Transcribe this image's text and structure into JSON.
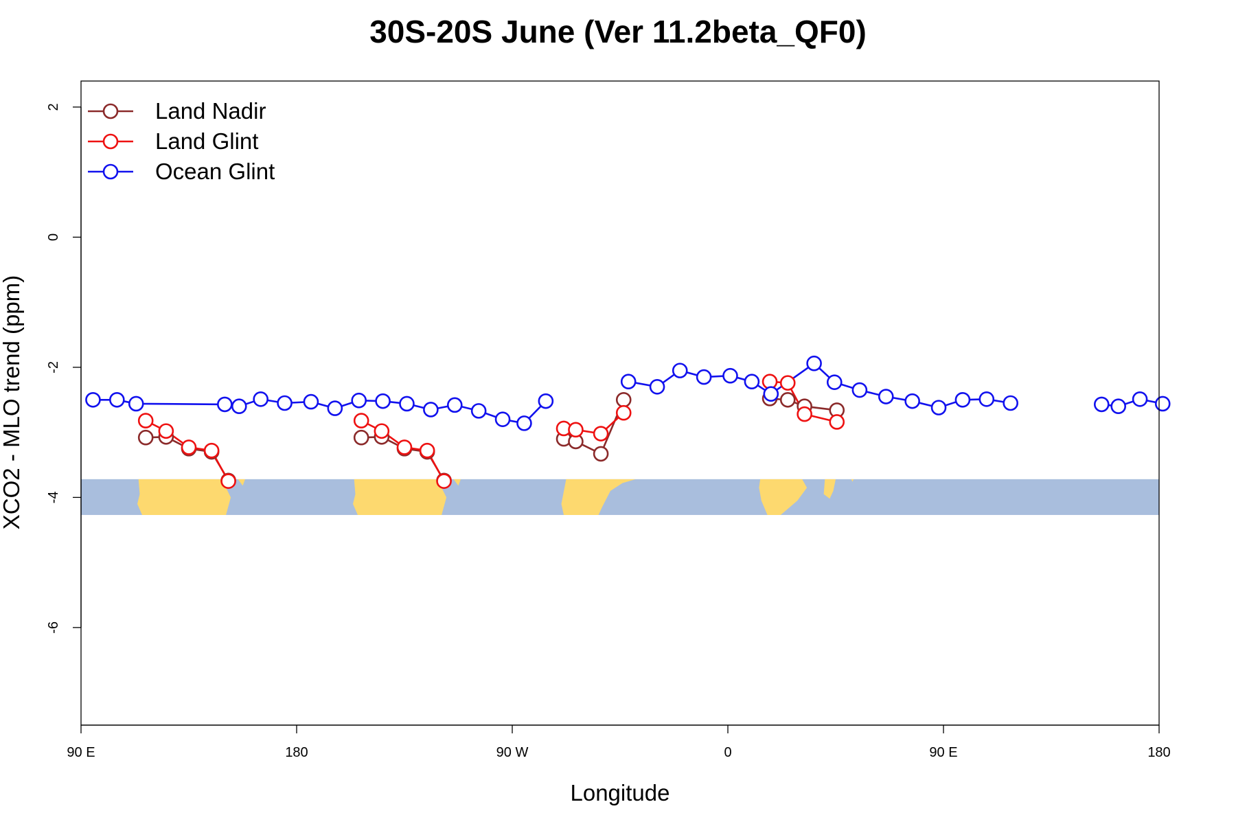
{
  "chart_data": {
    "type": "line",
    "title": "30S-20S June (Ver 11.2beta_QF0)",
    "xlabel": "Longitude",
    "ylabel": "XCO2 - MLO trend (ppm)",
    "xlim": [
      90,
      540
    ],
    "ylim": [
      -7.5,
      2.4
    ],
    "x_ticks": [
      {
        "value": 90,
        "label": "90 E"
      },
      {
        "value": 180,
        "label": "180"
      },
      {
        "value": 270,
        "label": "90 W"
      },
      {
        "value": 360,
        "label": "0"
      },
      {
        "value": 450,
        "label": "90 E"
      },
      {
        "value": 540,
        "label": "180"
      }
    ],
    "y_ticks": [
      {
        "value": 2,
        "label": "2"
      },
      {
        "value": 0,
        "label": "0"
      },
      {
        "value": -2,
        "label": "-2"
      },
      {
        "value": -4,
        "label": "-4"
      },
      {
        "value": -6,
        "label": "-6"
      }
    ],
    "legend": {
      "position": "top-left",
      "entries": [
        {
          "name": "Land Nadir",
          "color": "#8b2a2a"
        },
        {
          "name": "Land Glint",
          "color": "#ee1111"
        },
        {
          "name": "Ocean Glint",
          "color": "#1111ee"
        }
      ]
    },
    "series": [
      {
        "name": "Land Nadir",
        "color": "#8b2a2a",
        "segments": [
          [
            [
              117,
              -3.08
            ],
            [
              125.5,
              -3.07
            ],
            [
              135,
              -3.25
            ],
            [
              144.5,
              -3.3
            ],
            [
              151.5,
              -3.74
            ]
          ],
          [
            [
              291.5,
              -3.1
            ],
            [
              296.5,
              -3.14
            ],
            [
              307,
              -3.33
            ],
            [
              316.5,
              -2.5
            ]
          ],
          [
            [
              377.5,
              -2.48
            ],
            [
              385,
              -2.5
            ],
            [
              392,
              -2.6
            ],
            [
              405.5,
              -2.66
            ]
          ],
          [
            [
              207,
              -3.08
            ],
            [
              215.5,
              -3.07
            ],
            [
              225,
              -3.25
            ],
            [
              234.5,
              -3.3
            ],
            [
              241.5,
              -3.74
            ]
          ]
        ]
      },
      {
        "name": "Land Glint",
        "color": "#ee1111",
        "segments": [
          [
            [
              117,
              -2.82
            ],
            [
              125.5,
              -2.98
            ],
            [
              135,
              -3.23
            ],
            [
              144.5,
              -3.28
            ],
            [
              151.5,
              -3.75
            ]
          ],
          [
            [
              291.5,
              -2.94
            ],
            [
              296.5,
              -2.96
            ],
            [
              307,
              -3.02
            ],
            [
              316.5,
              -2.7
            ]
          ],
          [
            [
              377.5,
              -2.22
            ],
            [
              385,
              -2.24
            ],
            [
              392,
              -2.72
            ],
            [
              405.5,
              -2.84
            ]
          ],
          [
            [
              207,
              -2.82
            ],
            [
              215.5,
              -2.98
            ],
            [
              225,
              -3.23
            ],
            [
              234.5,
              -3.28
            ],
            [
              241.5,
              -3.75
            ]
          ]
        ]
      },
      {
        "name": "Ocean Glint",
        "color": "#1111ee",
        "segments": [
          [
            [
              95,
              -2.5
            ],
            [
              105,
              -2.5
            ],
            [
              113,
              -2.56
            ],
            [
              150,
              -2.57
            ],
            [
              156,
              -2.6
            ],
            [
              165,
              -2.49
            ],
            [
              175,
              -2.55
            ],
            [
              186,
              -2.53
            ],
            [
              196,
              -2.63
            ],
            [
              206,
              -2.51
            ],
            [
              216,
              -2.52
            ],
            [
              226,
              -2.56
            ],
            [
              236,
              -2.65
            ],
            [
              246,
              -2.58
            ],
            [
              256,
              -2.67
            ],
            [
              266,
              -2.8
            ],
            [
              275,
              -2.86
            ],
            [
              284,
              -2.52
            ]
          ],
          [
            [
              318.5,
              -2.22
            ],
            [
              330.5,
              -2.3
            ],
            [
              340,
              -2.05
            ],
            [
              350,
              -2.15
            ],
            [
              361,
              -2.13
            ],
            [
              370,
              -2.22
            ],
            [
              378,
              -2.41
            ],
            [
              396,
              -1.94
            ],
            [
              404.5,
              -2.23
            ],
            [
              415,
              -2.35
            ],
            [
              426,
              -2.45
            ],
            [
              437,
              -2.52
            ],
            [
              448,
              -2.62
            ],
            [
              458,
              -2.5
            ],
            [
              468,
              -2.49
            ],
            [
              478,
              -2.55
            ]
          ],
          [
            [
              516,
              -2.57
            ],
            [
              523,
              -2.6
            ],
            [
              532,
              -2.49
            ],
            [
              541.5,
              -2.56
            ]
          ]
        ]
      }
    ],
    "map_strip": {
      "y_range": [
        -4.27,
        -3.72
      ],
      "ocean_color": "#a9bedd",
      "land_color": "#fdd96f",
      "land_masses": [
        [
          [
            114,
            -3.72
          ],
          [
            148,
            -3.72
          ],
          [
            150.5,
            -3.85
          ],
          [
            152.5,
            -4.0
          ],
          [
            150.5,
            -4.27
          ],
          [
            115.5,
            -4.27
          ],
          [
            113.5,
            -4.1
          ],
          [
            114.5,
            -3.95
          ]
        ],
        [
          [
            155.5,
            -3.72
          ],
          [
            158.5,
            -3.72
          ],
          [
            157.5,
            -3.82
          ]
        ],
        [
          [
            292.5,
            -3.72
          ],
          [
            321.5,
            -3.72
          ],
          [
            316,
            -3.78
          ],
          [
            311,
            -3.9
          ],
          [
            307.5,
            -4.15
          ],
          [
            306,
            -4.27
          ],
          [
            291.5,
            -4.27
          ],
          [
            290.5,
            -4.1
          ]
        ],
        [
          [
            373.5,
            -3.72
          ],
          [
            391,
            -3.72
          ],
          [
            393,
            -3.85
          ],
          [
            389,
            -4.05
          ],
          [
            382,
            -4.27
          ],
          [
            376.5,
            -4.27
          ],
          [
            374,
            -4.05
          ],
          [
            373,
            -3.85
          ]
        ],
        [
          [
            133,
            -3.82
          ],
          [
            133.8,
            -3.82
          ],
          [
            133.5,
            -3.86
          ]
        ],
        [
          [
            400.5,
            -3.72
          ],
          [
            405,
            -3.72
          ],
          [
            404,
            -3.9
          ],
          [
            402.5,
            -4.02
          ],
          [
            400,
            -3.95
          ]
        ],
        [
          [
            411.5,
            -3.72
          ],
          [
            412.5,
            -3.72
          ],
          [
            412,
            -3.76
          ]
        ],
        [
          [
            204,
            -3.72
          ],
          [
            238,
            -3.72
          ],
          [
            240.5,
            -3.85
          ],
          [
            242.5,
            -4.0
          ],
          [
            240.5,
            -4.27
          ],
          [
            205.5,
            -4.27
          ],
          [
            203.5,
            -4.1
          ],
          [
            204.5,
            -3.95
          ]
        ],
        [
          [
            245.5,
            -3.72
          ],
          [
            248.5,
            -3.72
          ],
          [
            247.5,
            -3.82
          ]
        ]
      ]
    }
  }
}
